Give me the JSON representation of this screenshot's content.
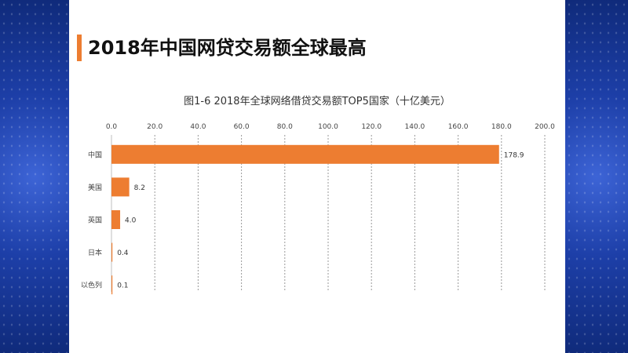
{
  "slide": {
    "title": "2018年中国网贷交易额全球最高",
    "accent_color": "#ed7d31",
    "side_background": "#1d3fa8"
  },
  "chart_data": {
    "type": "bar",
    "orientation": "horizontal",
    "title": "图1-6 2018年全球网络借贷交易额TOP5国家（十亿美元）",
    "categories": [
      "中国",
      "美国",
      "英国",
      "日本",
      "以色列"
    ],
    "values": [
      178.9,
      8.2,
      4.0,
      0.4,
      0.1
    ],
    "value_labels": [
      "178.9",
      "8.2",
      "4.0",
      "0.4",
      "0.1"
    ],
    "xlim": [
      0,
      200
    ],
    "x_ticks": [
      "0.0",
      "20.0",
      "40.0",
      "60.0",
      "80.0",
      "100.0",
      "120.0",
      "140.0",
      "160.0",
      "180.0",
      "200.0"
    ],
    "x_axis_position": "top",
    "grid": "vertical dashed",
    "bar_color": "#ed7d31"
  }
}
